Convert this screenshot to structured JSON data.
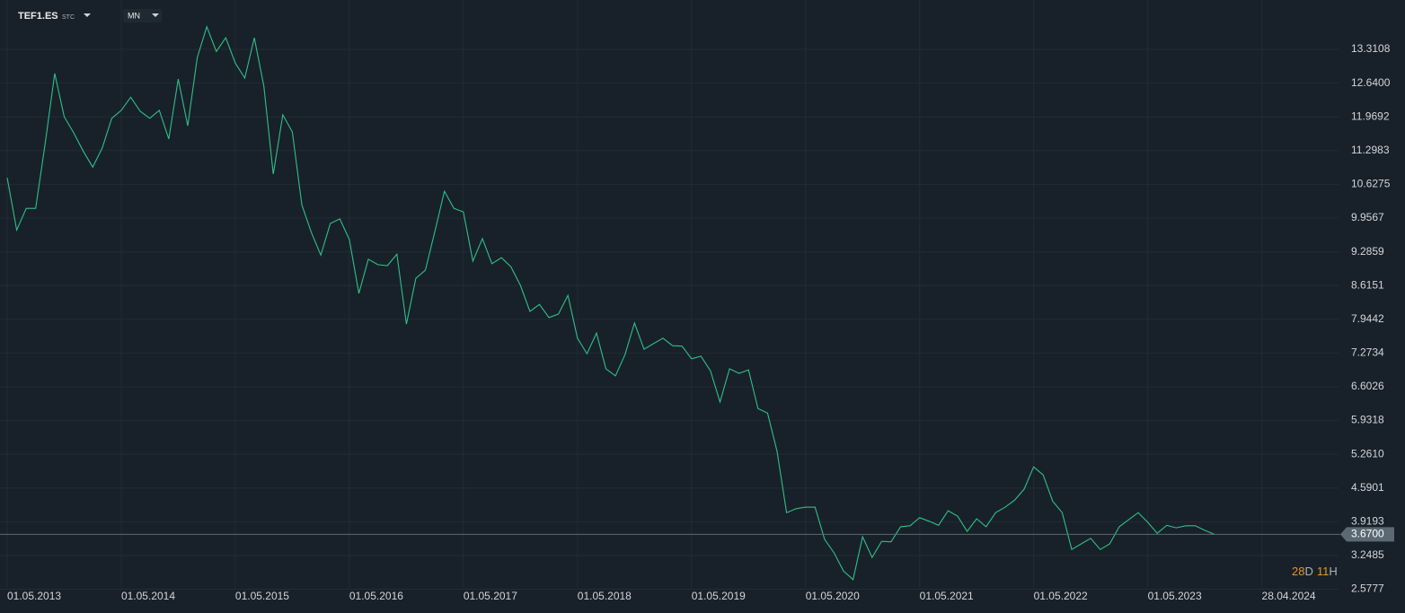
{
  "header": {
    "symbol": "TEF1.ES",
    "symbol_type": "STC",
    "interval": "MN"
  },
  "countdown": {
    "days": "28",
    "days_unit": "D",
    "hours": "11",
    "hours_unit": "H"
  },
  "chart_data": {
    "type": "line",
    "categories": [
      "01.05.2013",
      null,
      null,
      null,
      null,
      null,
      null,
      null,
      null,
      null,
      null,
      null,
      "01.05.2014",
      null,
      null,
      null,
      null,
      null,
      null,
      null,
      null,
      null,
      null,
      null,
      "01.05.2015",
      null,
      null,
      null,
      null,
      null,
      null,
      null,
      null,
      null,
      null,
      null,
      "01.05.2016",
      null,
      null,
      null,
      null,
      null,
      null,
      null,
      null,
      null,
      null,
      null,
      "01.05.2017",
      null,
      null,
      null,
      null,
      null,
      null,
      null,
      null,
      null,
      null,
      null,
      "01.05.2018",
      null,
      null,
      null,
      null,
      null,
      null,
      null,
      null,
      null,
      null,
      null,
      "01.05.2019",
      null,
      null,
      null,
      null,
      null,
      null,
      null,
      null,
      null,
      null,
      null,
      "01.05.2020",
      null,
      null,
      null,
      null,
      null,
      null,
      null,
      null,
      null,
      null,
      null,
      "01.05.2021",
      null,
      null,
      null,
      null,
      null,
      null,
      null,
      null,
      null,
      null,
      null,
      "01.05.2022",
      null,
      null,
      null,
      null,
      null,
      null,
      null,
      null,
      null,
      null,
      null,
      "01.05.2023",
      null,
      null,
      null,
      null,
      null,
      null,
      null,
      null,
      null,
      null,
      null,
      "28.04.2024"
    ],
    "series": [
      {
        "name": "TEF1.ES",
        "color": "#2fbf87",
        "values": [
          10.76,
          9.72,
          10.15,
          10.15,
          11.44,
          12.83,
          11.97,
          11.65,
          11.29,
          10.97,
          11.35,
          11.94,
          12.1,
          12.36,
          12.08,
          11.94,
          12.1,
          11.53,
          12.72,
          11.79,
          13.15,
          13.76,
          13.27,
          13.54,
          13.04,
          12.74,
          13.54,
          12.58,
          10.83,
          12.01,
          11.67,
          10.22,
          9.67,
          9.22,
          9.85,
          9.94,
          9.53,
          8.46,
          9.14,
          9.03,
          9.01,
          9.24,
          7.85,
          8.76,
          8.92,
          9.69,
          10.49,
          10.15,
          10.08,
          9.1,
          9.55,
          9.05,
          9.17,
          8.99,
          8.62,
          8.1,
          8.24,
          7.98,
          8.05,
          8.42,
          7.57,
          7.26,
          7.67,
          6.96,
          6.82,
          7.24,
          7.87,
          7.35,
          7.46,
          7.57,
          7.42,
          7.41,
          7.16,
          7.21,
          6.92,
          6.3,
          6.96,
          6.87,
          6.94,
          6.17,
          6.08,
          5.32,
          4.1,
          4.18,
          4.21,
          4.21,
          3.57,
          3.3,
          2.94,
          2.77,
          3.62,
          3.21,
          3.53,
          3.52,
          3.82,
          3.84,
          4.0,
          3.93,
          3.85,
          4.14,
          4.03,
          3.73,
          3.98,
          3.82,
          4.1,
          4.21,
          4.35,
          4.57,
          5.01,
          4.85,
          4.33,
          4.1,
          3.37,
          3.48,
          3.59,
          3.37,
          3.48,
          3.82,
          3.96,
          4.1,
          3.91,
          3.69,
          3.85,
          3.8,
          3.84,
          3.84,
          3.75,
          3.67,
          null,
          null,
          null,
          null,
          null
        ]
      }
    ],
    "ylim": [
      2.106,
      14.292
    ],
    "yticks": [
      2.5777,
      3.2485,
      3.9193,
      4.5901,
      {
        "value": 5.261,
        "label": "5.2610"
      },
      5.9318,
      6.6026,
      7.2734,
      7.9442,
      8.6151,
      9.2859,
      9.9567,
      10.6275,
      11.2983,
      11.9692,
      {
        "value": 12.64,
        "label": "12.6400"
      },
      13.3108
    ],
    "grid": true,
    "price_line": {
      "value": 3.67,
      "label": "3.6700"
    }
  }
}
